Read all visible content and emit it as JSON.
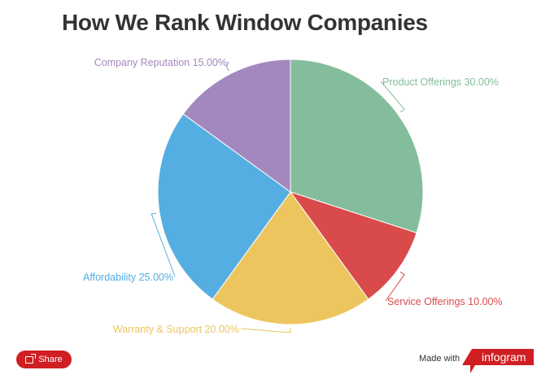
{
  "chart_data": {
    "type": "pie",
    "title": "How We Rank Window Companies",
    "start_angle": "top",
    "direction": "clockwise",
    "slices": [
      {
        "label": "Product Offerings",
        "value": 30,
        "display": "Product Offerings 30.00%",
        "color": "#84BD9B"
      },
      {
        "label": "Service Offerings",
        "value": 10,
        "display": "Service Offerings 10.00%",
        "color": "#D94A4B"
      },
      {
        "label": "Warranty & Support",
        "value": 20,
        "display": "Warranty & Support 20.00%",
        "color": "#EDC55E"
      },
      {
        "label": "Affordability",
        "value": 25,
        "display": "Affordability 25.00%",
        "color": "#55AEE2"
      },
      {
        "label": "Company Reputation",
        "value": 15,
        "display": "Company Reputation 15.00%",
        "color": "#A388BF"
      }
    ]
  },
  "footer": {
    "share_label": "Share",
    "made_with": "Made with",
    "brand": "infogram",
    "brand_color": "#D01F22"
  }
}
